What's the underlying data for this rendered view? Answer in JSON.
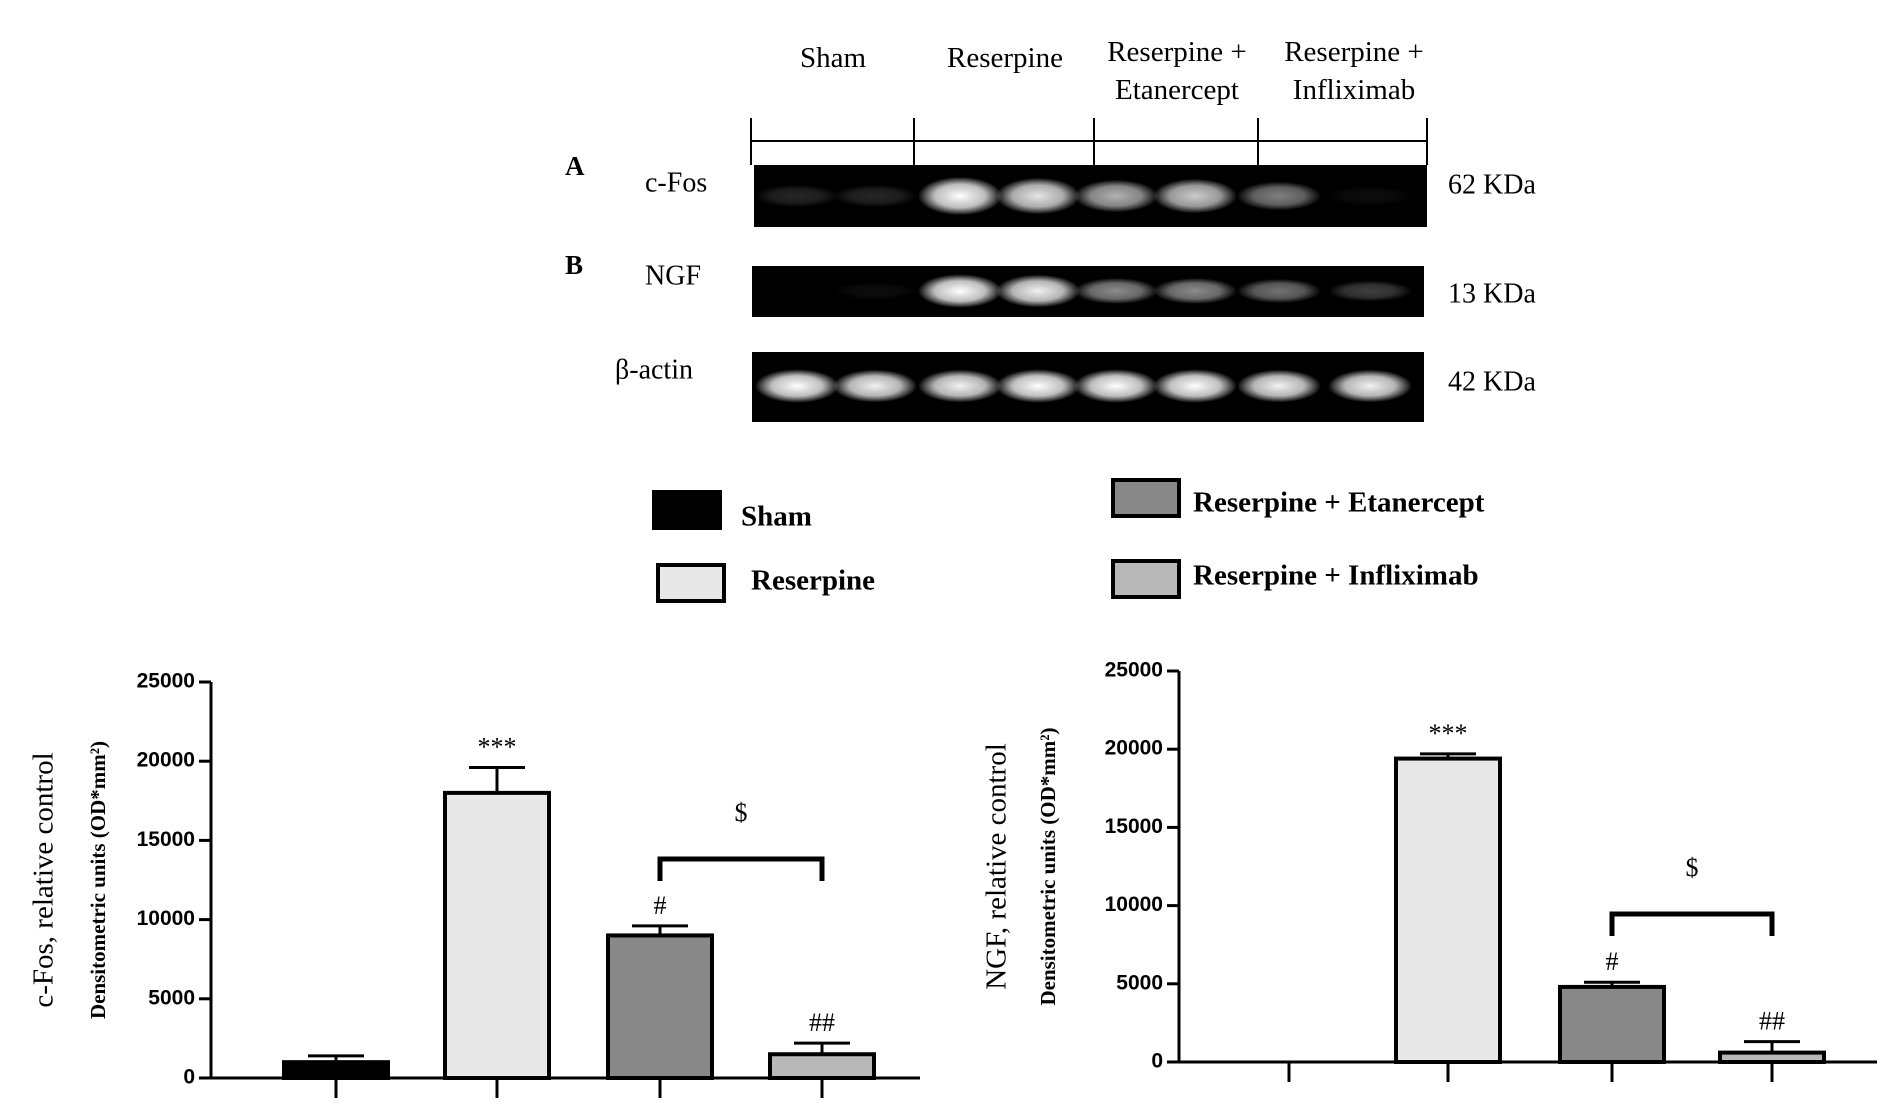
{
  "blot": {
    "groups": [
      "Sham",
      "Reserpine",
      "Reserpine +\nEtanercept",
      "Reserpine +\nInfliximab"
    ],
    "panels": [
      "A",
      "B"
    ],
    "proteins": [
      {
        "name": "c-Fos",
        "weight": "62 KDa"
      },
      {
        "name": "NGF",
        "weight": "13 KDa"
      },
      {
        "name": "β-actin",
        "weight": "42 KDa"
      }
    ]
  },
  "legend": [
    {
      "name": "Sham",
      "color": "#000000"
    },
    {
      "name": "Reserpine",
      "color": "#e8e8e8"
    },
    {
      "name": "Reserpine + Etanercept",
      "color": "#888888"
    },
    {
      "name": "Reserpine + Infliximab",
      "color": "#b8b8b8"
    }
  ],
  "chart_data": [
    {
      "type": "bar",
      "ylabel": "c-Fos, relative control",
      "ylabel2": "Densitometric units (OD*mm²)",
      "categories": [
        null,
        null,
        null,
        null
      ],
      "values": [
        1000,
        18000,
        9000,
        1500
      ],
      "errors": [
        400,
        1600,
        600,
        700
      ],
      "annotations": [
        null,
        "***",
        "#",
        "##"
      ],
      "bracket": {
        "from": 2,
        "to": 3,
        "text": "$"
      },
      "ylim": [
        0,
        25000
      ],
      "yticks": [
        0,
        5000,
        10000,
        15000,
        20000,
        25000
      ]
    },
    {
      "type": "bar",
      "ylabel": "NGF, relative control",
      "ylabel2": "Densitometric units (OD*mm²)",
      "categories": [
        null,
        null,
        null,
        null
      ],
      "values": [
        0,
        19400,
        4800,
        600
      ],
      "errors": [
        0,
        300,
        300,
        700
      ],
      "annotations": [
        null,
        "***",
        "#",
        "##"
      ],
      "bracket": {
        "from": 2,
        "to": 3,
        "text": "$"
      },
      "ylim": [
        0,
        25000
      ],
      "yticks": [
        0,
        5000,
        10000,
        15000,
        20000,
        25000
      ]
    }
  ]
}
